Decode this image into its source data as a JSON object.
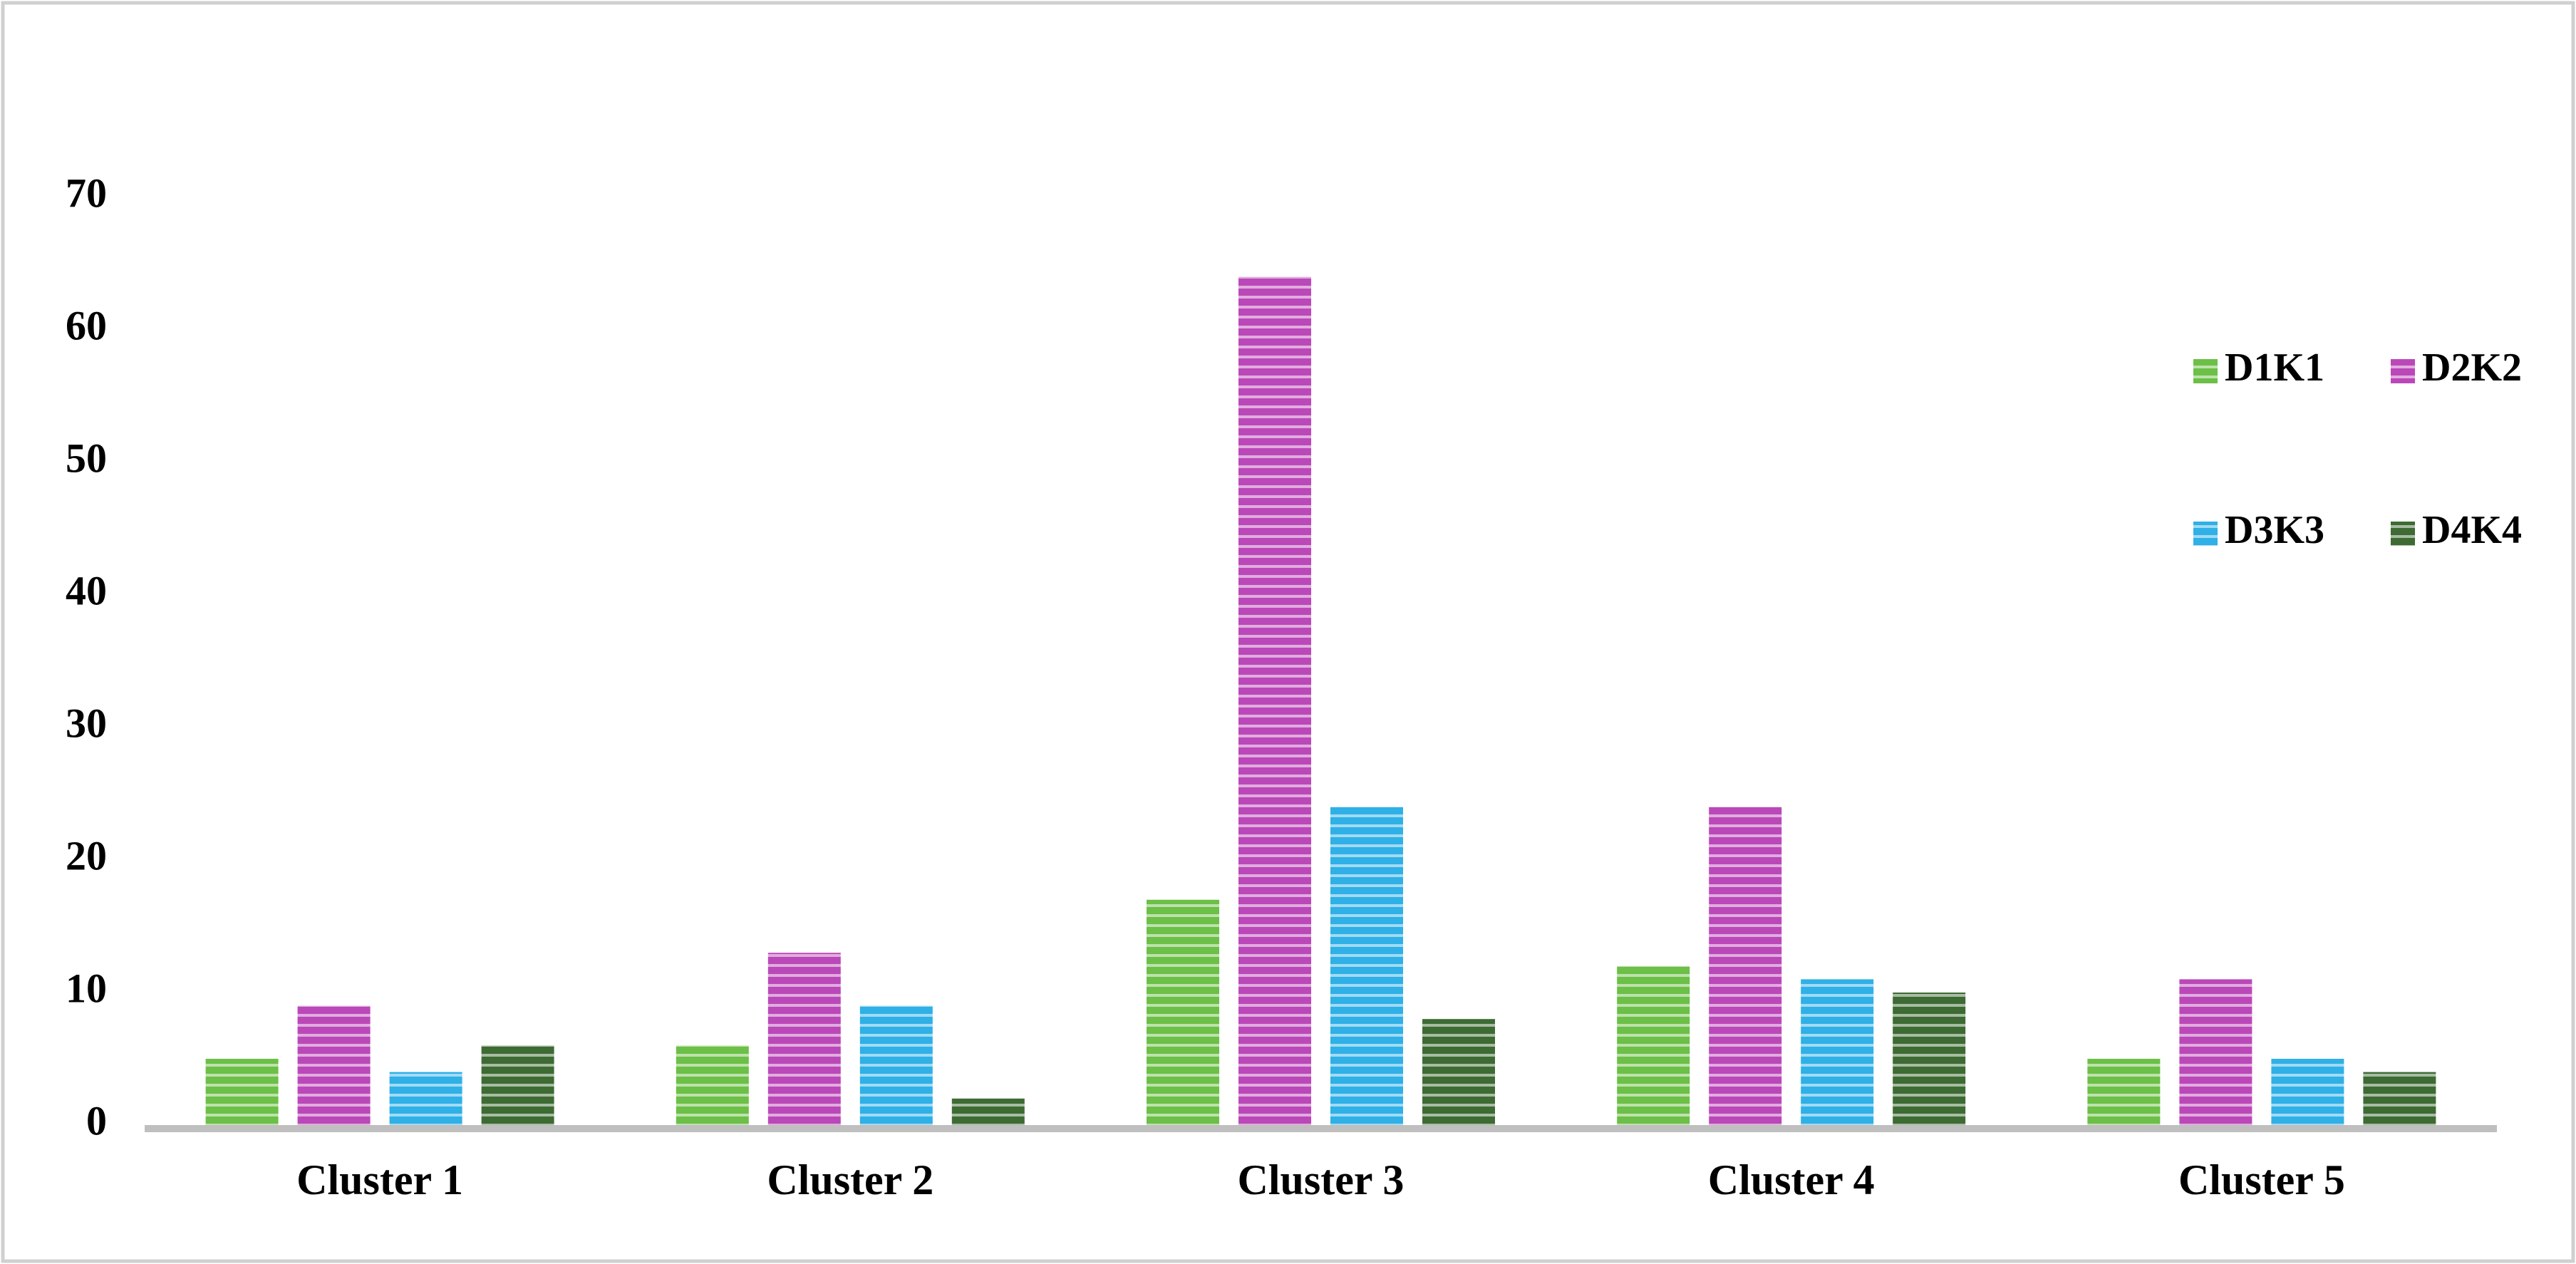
{
  "chart_data": {
    "type": "bar",
    "categories": [
      "Cluster 1",
      "Cluster 2",
      "Cluster 3",
      "Cluster 4",
      "Cluster 5"
    ],
    "series": [
      {
        "name": "D1K1",
        "color": "#6cbf47",
        "values": [
          5,
          6,
          17,
          12,
          5
        ]
      },
      {
        "name": "D2K2",
        "color": "#bb48b8",
        "values": [
          9,
          13,
          64,
          24,
          11
        ]
      },
      {
        "name": "D3K3",
        "color": "#2fb0e6",
        "values": [
          4,
          9,
          24,
          11,
          5
        ]
      },
      {
        "name": "D4K4",
        "color": "#3d6b33",
        "values": [
          6,
          2,
          8,
          10,
          4
        ]
      }
    ],
    "ylim": [
      0,
      70
    ],
    "yticks": [
      0,
      10,
      20,
      30,
      40,
      50,
      60,
      70
    ],
    "grid": false,
    "legend": "right"
  }
}
